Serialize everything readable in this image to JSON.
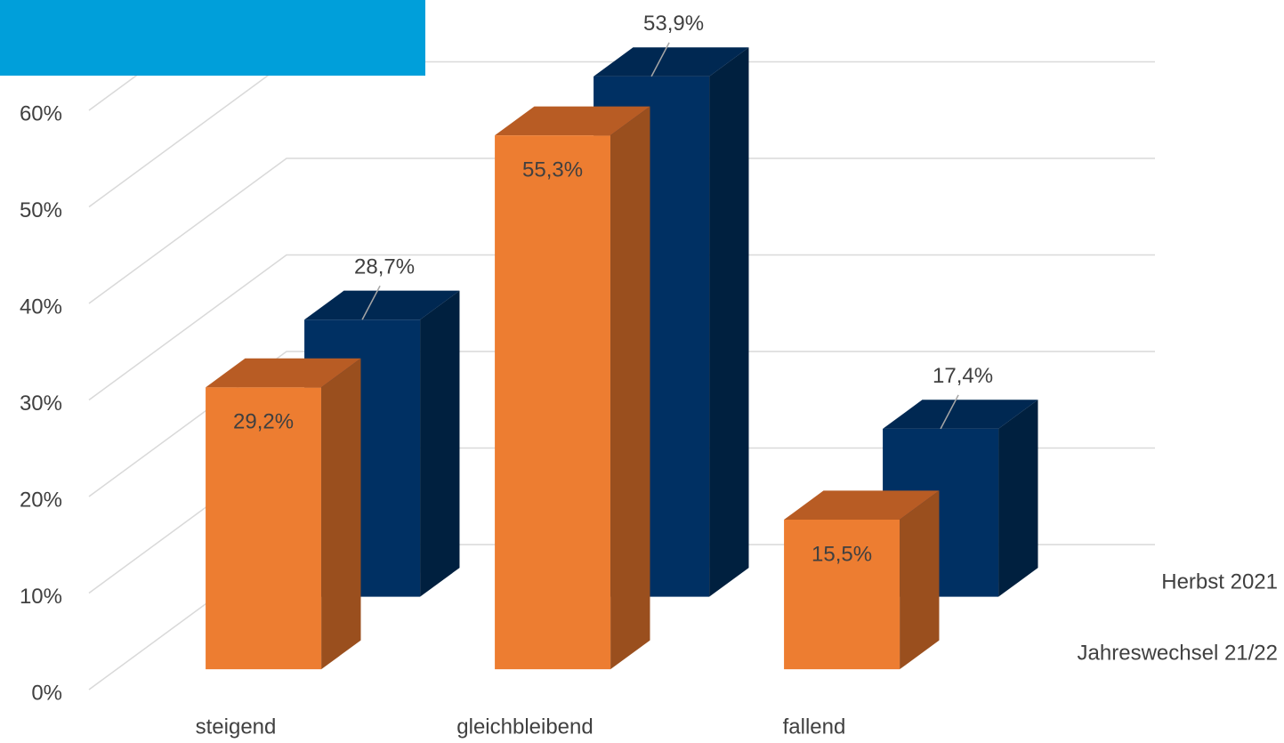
{
  "chart_data": {
    "type": "bar3d",
    "categories": [
      "steigend",
      "gleichbleibend",
      "fallend"
    ],
    "series": [
      {
        "name": "Jahreswechsel 21/22",
        "color": "#ed7d31",
        "side_color": "#9a4f1e",
        "top_color": "#b85c24",
        "values": [
          29.2,
          55.3,
          15.5
        ],
        "value_labels": [
          "29,2%",
          "55,3%",
          "15,5%"
        ]
      },
      {
        "name": "Herbst 2021",
        "color": "#003063",
        "side_color": "#00203f",
        "top_color": "#002852",
        "values": [
          28.7,
          53.9,
          17.4
        ],
        "value_labels": [
          "28,7%",
          "53,9%",
          "17,4%"
        ]
      }
    ],
    "ylim": [
      0,
      60
    ],
    "yticks": [
      {
        "value": 0,
        "label": "0%"
      },
      {
        "value": 10,
        "label": "10%"
      },
      {
        "value": 20,
        "label": "20%"
      },
      {
        "value": 30,
        "label": "30%"
      },
      {
        "value": 40,
        "label": "40%"
      },
      {
        "value": 50,
        "label": "50%"
      },
      {
        "value": 60,
        "label": "60%"
      }
    ],
    "grid": true
  }
}
